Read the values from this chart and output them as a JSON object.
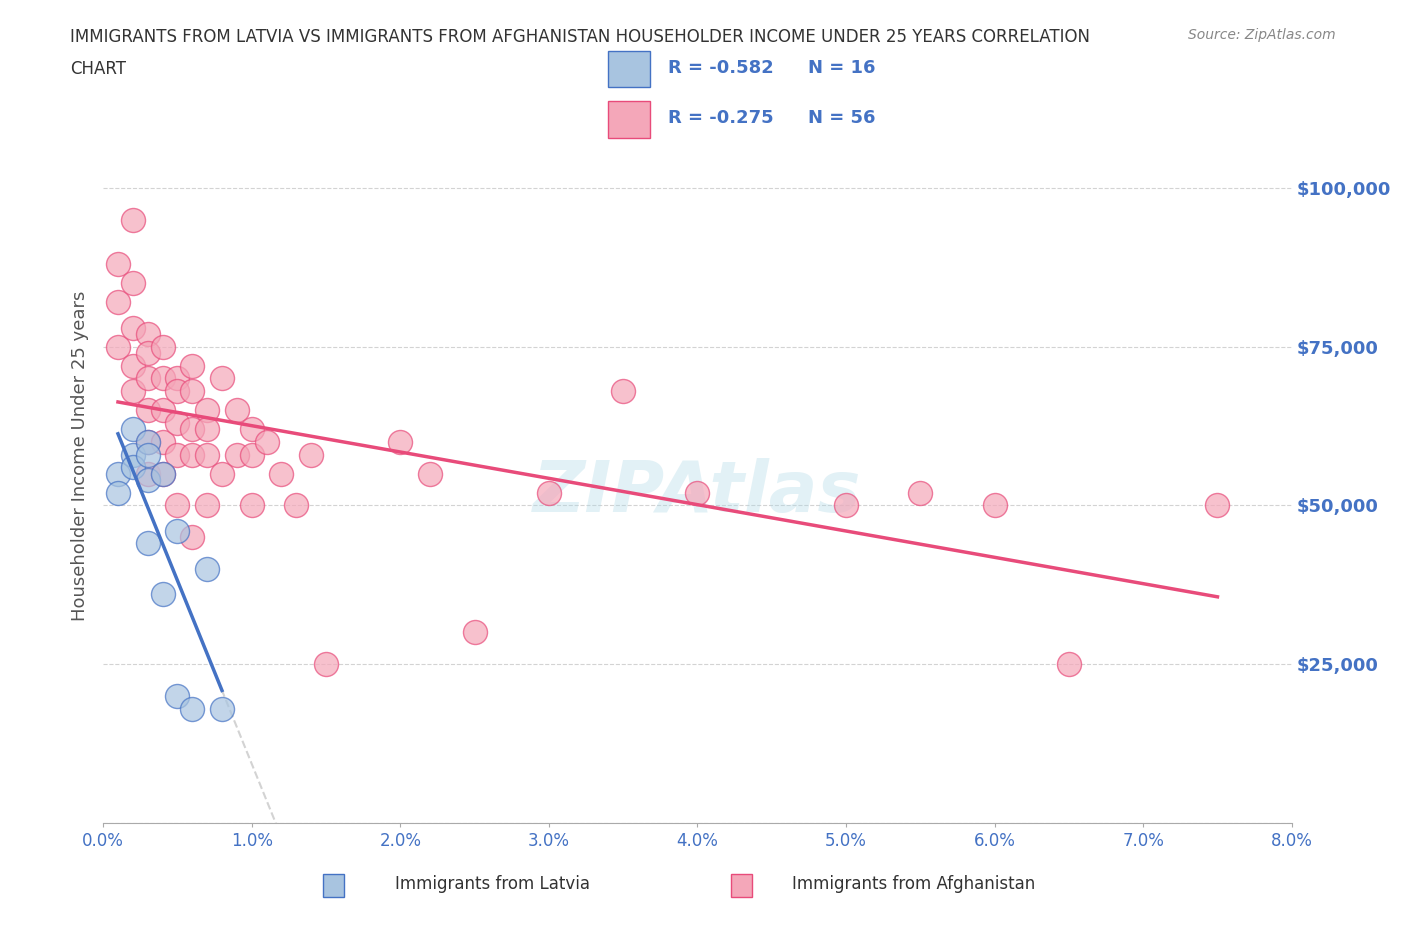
{
  "title": "IMMIGRANTS FROM LATVIA VS IMMIGRANTS FROM AFGHANISTAN HOUSEHOLDER INCOME UNDER 25 YEARS CORRELATION\nCHART",
  "source": "Source: ZipAtlas.com",
  "xlabel": "",
  "ylabel": "Householder Income Under 25 years",
  "xlim": [
    0.0,
    0.08
  ],
  "ylim": [
    0,
    110000
  ],
  "yticks": [
    0,
    25000,
    50000,
    75000,
    100000
  ],
  "ytick_labels": [
    "",
    "$25,000",
    "$50,000",
    "$75,000",
    "$100,000"
  ],
  "xticks": [
    0.0,
    0.01,
    0.02,
    0.03,
    0.04,
    0.05,
    0.06,
    0.07,
    0.08
  ],
  "xtick_labels": [
    "0.0%",
    "1.0%",
    "2.0%",
    "3.0%",
    "4.0%",
    "5.0%",
    "6.0%",
    "7.0%",
    "8.0%"
  ],
  "latvia_color": "#a8c4e0",
  "afghanistan_color": "#f4a7b9",
  "latvia_R": -0.582,
  "latvia_N": 16,
  "afghanistan_R": -0.275,
  "afghanistan_N": 56,
  "latvia_line_color": "#4472C4",
  "afghanistan_line_color": "#E84B7A",
  "legend_R_color": "#4472C4",
  "legend_N_color": "#4472C4",
  "watermark": "ZIPAtlas",
  "latvia_x": [
    0.001,
    0.001,
    0.002,
    0.002,
    0.002,
    0.003,
    0.003,
    0.003,
    0.003,
    0.004,
    0.004,
    0.005,
    0.005,
    0.006,
    0.007,
    0.008
  ],
  "latvia_y": [
    55000,
    52000,
    62000,
    58000,
    56000,
    60000,
    58000,
    54000,
    44000,
    36000,
    55000,
    46000,
    20000,
    18000,
    40000,
    18000
  ],
  "afghanistan_x": [
    0.001,
    0.001,
    0.001,
    0.002,
    0.002,
    0.002,
    0.002,
    0.002,
    0.003,
    0.003,
    0.003,
    0.003,
    0.003,
    0.003,
    0.004,
    0.004,
    0.004,
    0.004,
    0.004,
    0.005,
    0.005,
    0.005,
    0.005,
    0.005,
    0.006,
    0.006,
    0.006,
    0.006,
    0.006,
    0.007,
    0.007,
    0.007,
    0.007,
    0.008,
    0.008,
    0.009,
    0.009,
    0.01,
    0.01,
    0.01,
    0.011,
    0.012,
    0.013,
    0.014,
    0.015,
    0.02,
    0.022,
    0.025,
    0.03,
    0.035,
    0.04,
    0.05,
    0.055,
    0.06,
    0.065,
    0.075
  ],
  "afghanistan_y": [
    88000,
    82000,
    75000,
    95000,
    85000,
    78000,
    72000,
    68000,
    77000,
    74000,
    70000,
    65000,
    60000,
    55000,
    75000,
    70000,
    65000,
    60000,
    55000,
    70000,
    68000,
    63000,
    58000,
    50000,
    72000,
    68000,
    62000,
    58000,
    45000,
    65000,
    62000,
    58000,
    50000,
    70000,
    55000,
    65000,
    58000,
    62000,
    58000,
    50000,
    60000,
    55000,
    50000,
    58000,
    25000,
    60000,
    55000,
    30000,
    52000,
    68000,
    52000,
    50000,
    52000,
    50000,
    25000,
    50000
  ]
}
